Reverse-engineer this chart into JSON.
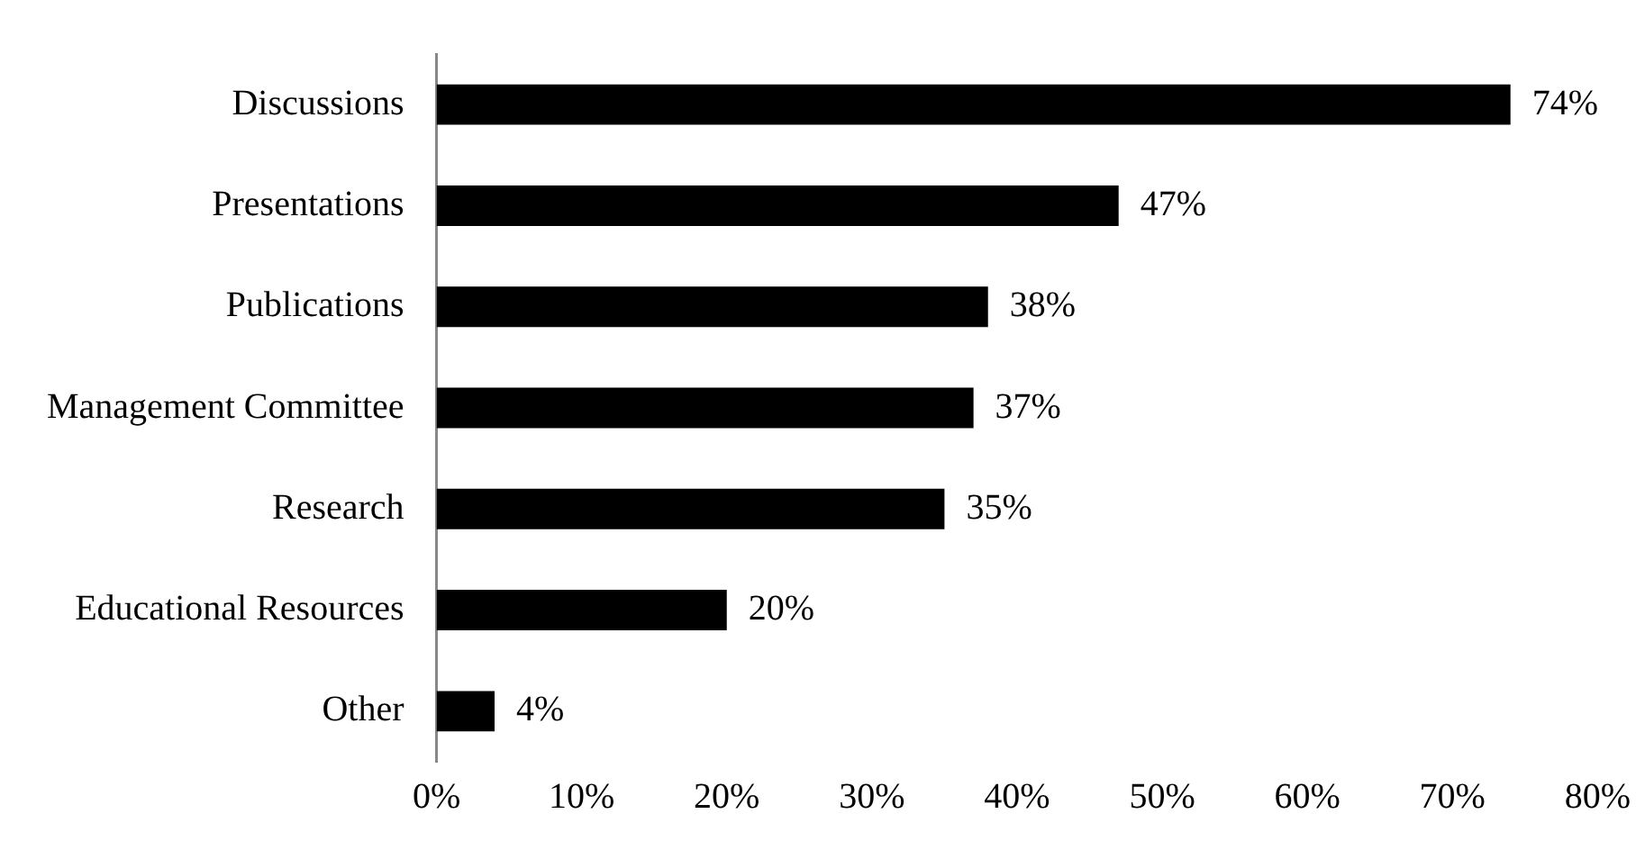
{
  "chart_data": {
    "type": "bar",
    "orientation": "horizontal",
    "categories": [
      "Discussions",
      "Presentations",
      "Publications",
      "Management Committee",
      "Research",
      "Educational Resources",
      "Other"
    ],
    "values": [
      74,
      47,
      38,
      37,
      35,
      20,
      4
    ],
    "value_labels": [
      "74%",
      "47%",
      "38%",
      "37%",
      "35%",
      "20%",
      "4%"
    ],
    "color": "#000000",
    "xlim": [
      0,
      80
    ],
    "xticks": [
      {
        "value": 0,
        "label": "0%"
      },
      {
        "value": 10,
        "label": "10%"
      },
      {
        "value": 20,
        "label": "20%"
      },
      {
        "value": 30,
        "label": "30%"
      },
      {
        "value": 40,
        "label": "40%"
      },
      {
        "value": 50,
        "label": "50%"
      },
      {
        "value": 60,
        "label": "60%"
      },
      {
        "value": 70,
        "label": "70%"
      },
      {
        "value": 80,
        "label": "80%"
      }
    ],
    "grid": false,
    "legend": false
  }
}
